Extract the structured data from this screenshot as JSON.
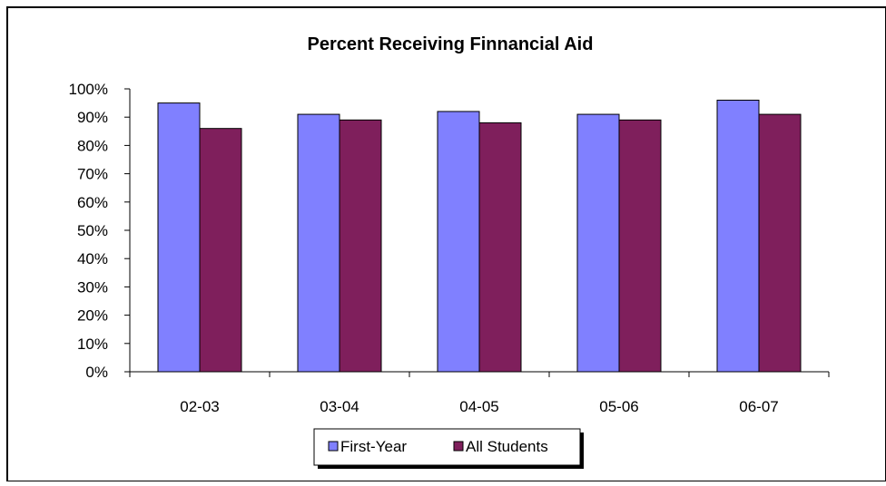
{
  "chart_data": {
    "type": "bar",
    "title": "Percent Receiving Finnancial Aid",
    "xlabel": "",
    "ylabel": "",
    "categories": [
      "02-03",
      "03-04",
      "04-05",
      "05-06",
      "06-07"
    ],
    "series": [
      {
        "name": "First-Year",
        "color": "#8080FF",
        "values": [
          95,
          91,
          92,
          91,
          96
        ]
      },
      {
        "name": "All Students",
        "color": "#7F1F5C",
        "values": [
          86,
          89,
          88,
          89,
          91
        ]
      }
    ],
    "ylim": [
      0,
      100
    ],
    "yticks": [
      "0%",
      "10%",
      "20%",
      "30%",
      "40%",
      "50%",
      "60%",
      "70%",
      "80%",
      "90%",
      "100%"
    ],
    "y_unit": "%",
    "grid": false,
    "legend_position": "bottom-center"
  }
}
